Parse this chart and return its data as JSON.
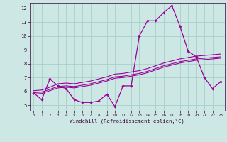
{
  "xlabel": "Windchill (Refroidissement éolien,°C)",
  "background_color": "#cde8e4",
  "grid_color": "#9eccc4",
  "line_color": "#990099",
  "xlim": [
    -0.5,
    23.5
  ],
  "ylim": [
    4.6,
    12.4
  ],
  "xticks": [
    0,
    1,
    2,
    3,
    4,
    5,
    6,
    7,
    8,
    9,
    10,
    11,
    12,
    13,
    14,
    15,
    16,
    17,
    18,
    19,
    20,
    21,
    22,
    23
  ],
  "yticks": [
    5,
    6,
    7,
    8,
    9,
    10,
    11,
    12
  ],
  "hourly_data": [
    5.9,
    5.4,
    6.9,
    6.4,
    6.2,
    5.4,
    5.2,
    5.2,
    5.3,
    5.8,
    4.9,
    6.4,
    6.4,
    10.0,
    11.1,
    11.1,
    11.7,
    12.2,
    10.7,
    8.9,
    8.5,
    7.0,
    6.2,
    6.7
  ],
  "line2_data": [
    6.05,
    6.1,
    6.3,
    6.55,
    6.6,
    6.55,
    6.65,
    6.75,
    6.9,
    7.05,
    7.25,
    7.3,
    7.4,
    7.5,
    7.65,
    7.85,
    8.05,
    8.2,
    8.35,
    8.45,
    8.55,
    8.6,
    8.65,
    8.7
  ],
  "line3_data": [
    5.9,
    5.95,
    6.15,
    6.35,
    6.4,
    6.35,
    6.45,
    6.55,
    6.7,
    6.85,
    7.05,
    7.1,
    7.2,
    7.3,
    7.45,
    7.65,
    7.85,
    8.0,
    8.15,
    8.25,
    8.35,
    8.4,
    8.45,
    8.5
  ],
  "line4_data": [
    5.8,
    5.85,
    6.05,
    6.25,
    6.3,
    6.25,
    6.35,
    6.45,
    6.6,
    6.75,
    6.95,
    7.0,
    7.1,
    7.2,
    7.35,
    7.55,
    7.75,
    7.9,
    8.05,
    8.15,
    8.25,
    8.3,
    8.35,
    8.4
  ]
}
